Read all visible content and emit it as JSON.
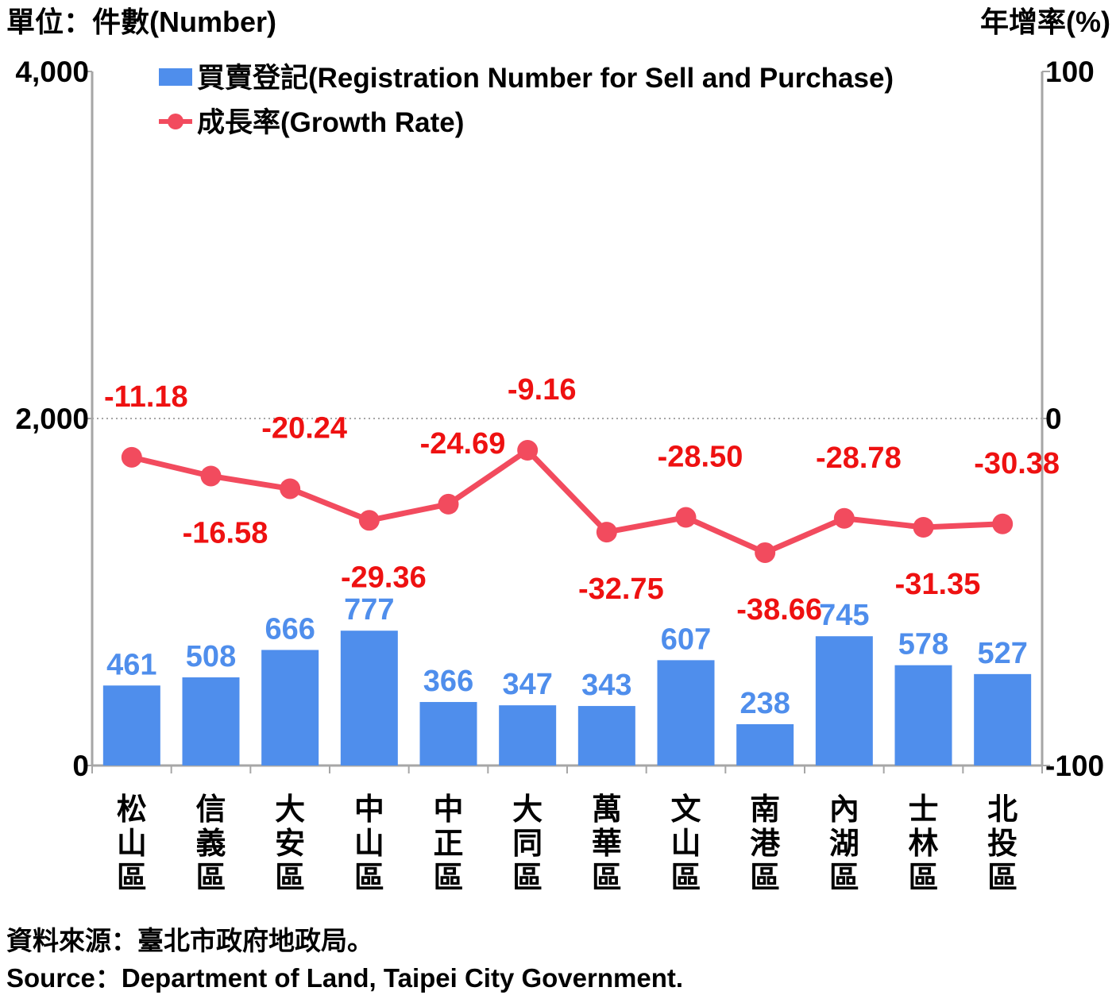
{
  "chart_data": {
    "type": "bar",
    "left_axis_unit": "單位：件數(Number)",
    "right_axis_unit": "年增率(%)",
    "categories": [
      "松山區",
      "信義區",
      "大安區",
      "中山區",
      "中正區",
      "大同區",
      "萬華區",
      "文山區",
      "南港區",
      "內湖區",
      "士林區",
      "北投區"
    ],
    "series": [
      {
        "name": "買賣登記(Registration Number for Sell and Purchase)",
        "type": "bar",
        "axis": "left",
        "color": "#4F8EEC",
        "label_color": "#4F8EEC",
        "values": [
          461,
          508,
          666,
          777,
          366,
          347,
          343,
          607,
          238,
          745,
          578,
          527
        ],
        "labels": [
          "461",
          "508",
          "666",
          "777",
          "366",
          "347",
          "343",
          "607",
          "238",
          "745",
          "578",
          "527"
        ]
      },
      {
        "name": "成長率(Growth Rate)",
        "type": "line",
        "axis": "right",
        "color": "#F24B5E",
        "label_color": "#EE1111",
        "values": [
          -11.18,
          -16.58,
          -20.24,
          -29.36,
          -24.69,
          -9.16,
          -32.75,
          -28.5,
          -38.66,
          -28.78,
          -31.35,
          -30.38
        ],
        "labels": [
          "-11.18",
          "-16.58",
          "-20.24",
          "-29.36",
          "-24.69",
          "-9.16",
          "-32.75",
          "-28.50",
          "-38.66",
          "-28.78",
          "-31.35",
          "-30.38"
        ],
        "label_placement": [
          "above",
          "below",
          "above",
          "below",
          "above",
          "above",
          "below",
          "above",
          "below",
          "above",
          "below",
          "above"
        ]
      }
    ],
    "left_axis": {
      "min": 0,
      "max": 4000,
      "ticks": [
        0,
        2000,
        4000
      ],
      "tick_labels": [
        "0",
        "2,000",
        "4,000"
      ]
    },
    "right_axis": {
      "min": -100,
      "max": 100,
      "ticks": [
        -100,
        0,
        100
      ],
      "tick_labels": [
        "-100",
        "0",
        "100"
      ]
    },
    "reference_line": {
      "axis": "right",
      "value": 0,
      "style": "dotted"
    },
    "legend_position": "top-left",
    "grid": false
  },
  "source": {
    "zh": "資料來源：臺北市政府地政局。",
    "en": "Source：Department of Land, Taipei City Government."
  }
}
